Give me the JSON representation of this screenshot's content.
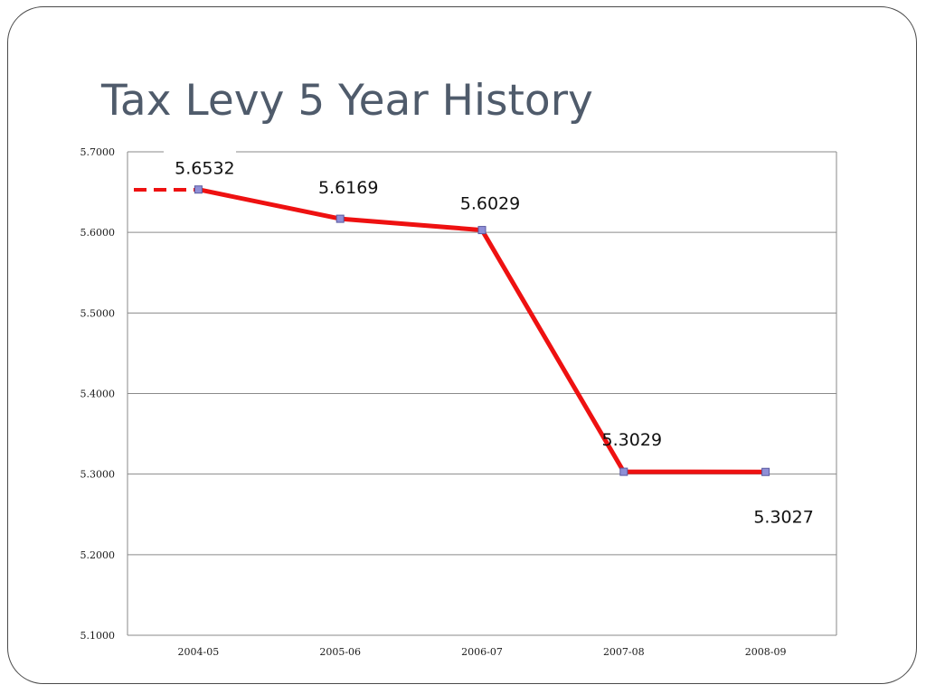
{
  "slide": {
    "title": "Tax Levy 5 Year History"
  },
  "chart_data": {
    "type": "line",
    "title": "",
    "xlabel": "",
    "ylabel": "",
    "categories": [
      "2004-05",
      "2005-06",
      "2006-07",
      "2007-08",
      "2008-09"
    ],
    "y_ticks": [
      "5.1000",
      "5.2000",
      "5.3000",
      "5.4000",
      "5.5000",
      "5.6000",
      "5.7000"
    ],
    "ylim": [
      5.1,
      5.7
    ],
    "grid": true,
    "legend": "right",
    "series": [
      {
        "name": "",
        "values": [
          5.6532,
          5.6169,
          5.6029,
          5.3029,
          5.3027
        ],
        "data_labels": [
          "5.6532",
          "5.6169",
          "5.6029",
          "5.3029",
          "5.3027"
        ],
        "line_color": "#ee1111",
        "marker_color": "#8f8fd6"
      }
    ]
  }
}
